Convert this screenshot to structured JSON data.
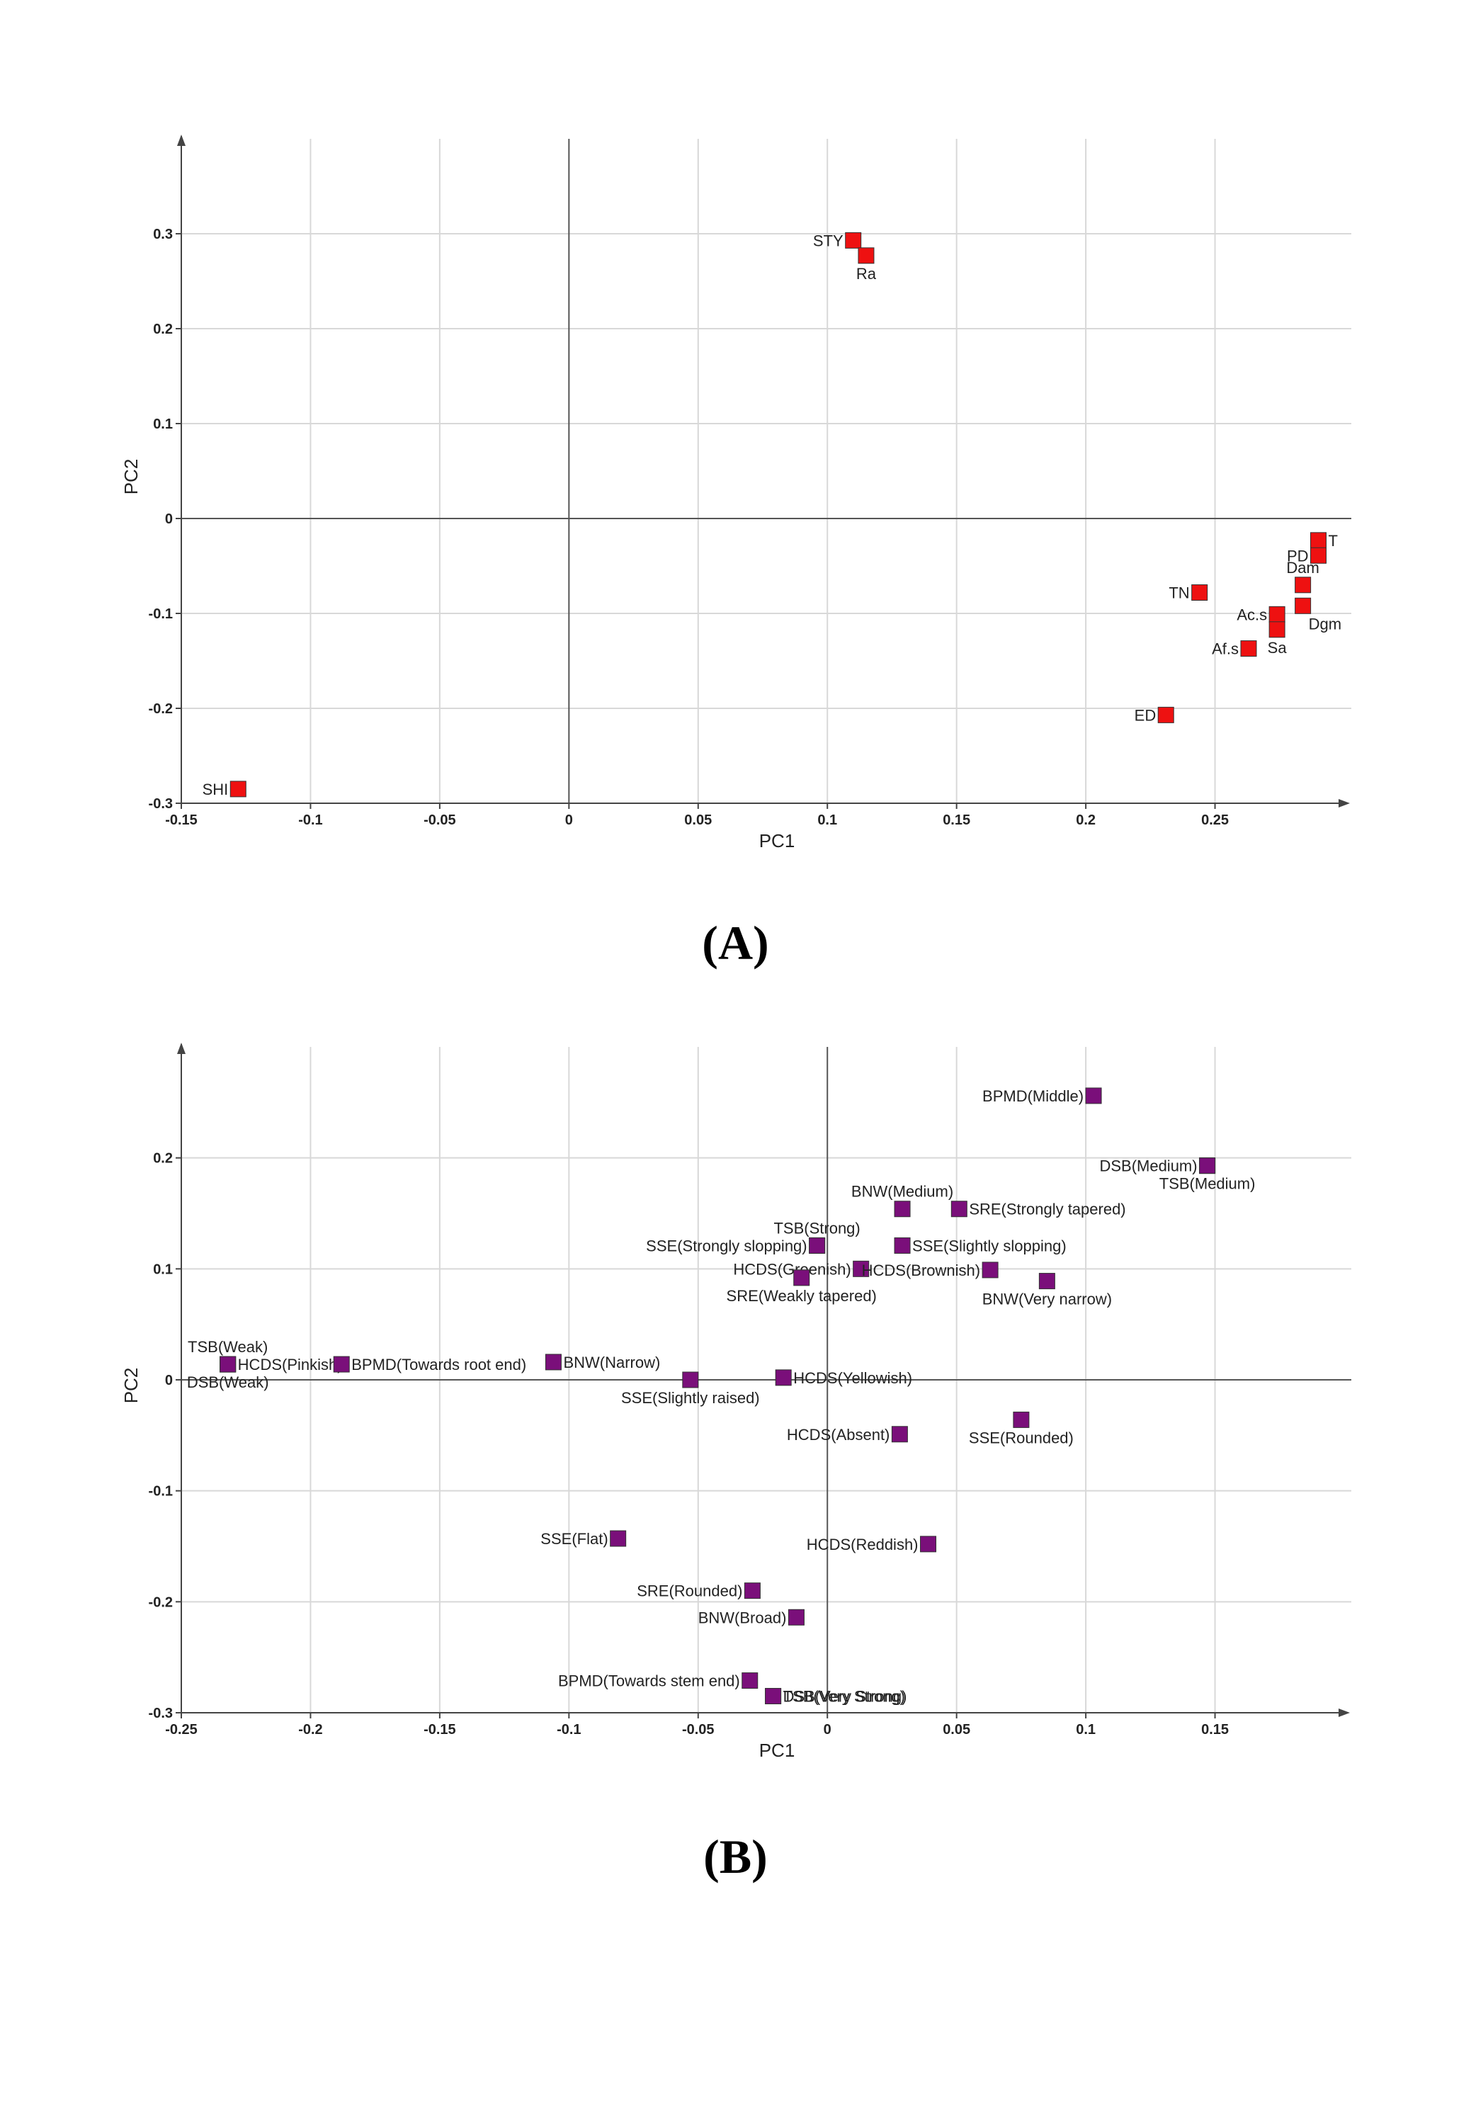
{
  "chart_data": [
    {
      "type": "scatter",
      "panel_label": "(A)",
      "xlabel": "PC1",
      "ylabel": "PC2",
      "xlim": [
        -0.15,
        0.3
      ],
      "ylim": [
        -0.3,
        0.4
      ],
      "xticks": [
        "-0.15",
        "-0.1",
        "-0.05",
        "0",
        "0.05",
        "0.1",
        "0.15",
        "0.2",
        "0.25"
      ],
      "yticks": [
        "-0.3",
        "-0.2",
        "-0.1",
        "0",
        "0.1",
        "0.2",
        "0.3"
      ],
      "grid": true,
      "marker_color": "#ee1111",
      "points": [
        {
          "label": "STY",
          "x": 0.11,
          "y": 0.293,
          "pos": "left"
        },
        {
          "label": "Ra",
          "x": 0.115,
          "y": 0.277,
          "pos": "below"
        },
        {
          "label": "T",
          "x": 0.29,
          "y": -0.023,
          "pos": "right"
        },
        {
          "label": "PD",
          "x": 0.29,
          "y": -0.039,
          "pos": "left"
        },
        {
          "label": "Dam",
          "x": 0.284,
          "y": -0.07,
          "pos": "above"
        },
        {
          "label": "TN",
          "x": 0.244,
          "y": -0.078,
          "pos": "left"
        },
        {
          "label": "Dgm",
          "x": 0.284,
          "y": -0.092,
          "pos": "below-right"
        },
        {
          "label": "Ac.s",
          "x": 0.274,
          "y": -0.101,
          "pos": "left"
        },
        {
          "label": "Sa",
          "x": 0.274,
          "y": -0.117,
          "pos": "below"
        },
        {
          "label": "Af.s",
          "x": 0.263,
          "y": -0.137,
          "pos": "left"
        },
        {
          "label": "ED",
          "x": 0.231,
          "y": -0.207,
          "pos": "left"
        },
        {
          "label": "SHI",
          "x": -0.128,
          "y": -0.285,
          "pos": "left"
        }
      ]
    },
    {
      "type": "scatter",
      "panel_label": "(B)",
      "xlabel": "PC1",
      "ylabel": "PC2",
      "xlim": [
        -0.25,
        0.2
      ],
      "ylim": [
        -0.3,
        0.3
      ],
      "xticks": [
        "-0.25",
        "-0.2",
        "-0.15",
        "-0.1",
        "-0.05",
        "0",
        "0.05",
        "0.1",
        "0.15"
      ],
      "yticks": [
        "-0.3",
        "-0.2",
        "-0.1",
        "0",
        "0.1",
        "0.2"
      ],
      "grid": true,
      "marker_color": "#7a0f7a",
      "points": [
        {
          "label": "BPMD(Middle)",
          "x": 0.103,
          "y": 0.256,
          "pos": "left"
        },
        {
          "label": "DSB(Medium)",
          "x": 0.147,
          "y": 0.193,
          "pos": "left"
        },
        {
          "label": "TSB(Medium)",
          "x": 0.147,
          "y": 0.193,
          "pos": "below"
        },
        {
          "label": "BNW(Medium)",
          "x": 0.029,
          "y": 0.154,
          "pos": "above"
        },
        {
          "label": "SRE(Strongly tapered)",
          "x": 0.051,
          "y": 0.154,
          "pos": "right"
        },
        {
          "label": "TSB(Strong)",
          "x": -0.004,
          "y": 0.121,
          "pos": "above"
        },
        {
          "label": "SSE(Strongly slopping)",
          "x": -0.004,
          "y": 0.121,
          "pos": "left"
        },
        {
          "label": "SSE(Slightly slopping)",
          "x": 0.029,
          "y": 0.121,
          "pos": "right"
        },
        {
          "label": "HCDS(Greenish)",
          "x": 0.013,
          "y": 0.1,
          "pos": "left"
        },
        {
          "label": "HCDS(Brownish)",
          "x": 0.063,
          "y": 0.099,
          "pos": "left"
        },
        {
          "label": "SRE(Weakly tapered)",
          "x": -0.01,
          "y": 0.092,
          "pos": "below"
        },
        {
          "label": "BNW(Very narrow)",
          "x": 0.085,
          "y": 0.089,
          "pos": "below"
        },
        {
          "label": "TSB(Weak)",
          "x": -0.232,
          "y": 0.014,
          "pos": "above"
        },
        {
          "label": "HCDS(Pinkish)",
          "x": -0.232,
          "y": 0.014,
          "pos": "right"
        },
        {
          "label": "DSB(Weak)",
          "x": -0.232,
          "y": 0.014,
          "pos": "below"
        },
        {
          "label": "BPMD(Towards root end)",
          "x": -0.188,
          "y": 0.014,
          "pos": "right"
        },
        {
          "label": "BNW(Narrow)",
          "x": -0.106,
          "y": 0.016,
          "pos": "right"
        },
        {
          "label": "SSE(Slightly raised)",
          "x": -0.053,
          "y": 0.0,
          "pos": "below"
        },
        {
          "label": "HCDS(Yellowish)",
          "x": -0.017,
          "y": 0.002,
          "pos": "right"
        },
        {
          "label": "HCDS(Absent)",
          "x": 0.028,
          "y": -0.049,
          "pos": "left"
        },
        {
          "label": "SSE(Rounded)",
          "x": 0.075,
          "y": -0.036,
          "pos": "below"
        },
        {
          "label": "SSE(Flat)",
          "x": -0.081,
          "y": -0.143,
          "pos": "left"
        },
        {
          "label": "HCDS(Reddish)",
          "x": 0.039,
          "y": -0.148,
          "pos": "left"
        },
        {
          "label": "SRE(Rounded)",
          "x": -0.029,
          "y": -0.19,
          "pos": "left"
        },
        {
          "label": "BNW(Broad)",
          "x": -0.012,
          "y": -0.214,
          "pos": "left"
        },
        {
          "label": "BPMD(Towards stem end)",
          "x": -0.03,
          "y": -0.271,
          "pos": "left"
        },
        {
          "label": "DSB(Very Strong)",
          "x": -0.021,
          "y": -0.285,
          "pos": "right"
        },
        {
          "label": "TSB(Very Strong)",
          "x": -0.021,
          "y": -0.285,
          "pos": "right"
        }
      ]
    }
  ]
}
